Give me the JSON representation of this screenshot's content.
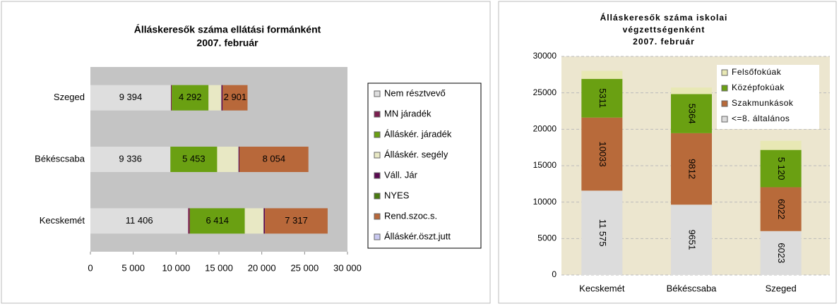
{
  "chart_data": [
    {
      "type": "hbar_stacked",
      "title": "Álláskeresők száma ellátási formánként",
      "subtitle": "2007. február",
      "categories": [
        "Kecskemét",
        "Békéscsaba",
        "Szeged"
      ],
      "series": [
        {
          "name": "Nem résztvevő",
          "color": "#dedede",
          "values": [
            11406,
            9336,
            9394
          ],
          "value_labels": [
            "11 406",
            "9 336",
            "9 394"
          ]
        },
        {
          "name": "MN járadék",
          "color": "#7b1f4f",
          "values": [
            200,
            0,
            100
          ]
        },
        {
          "name": "Álláskér. járadék",
          "color": "#6aa012",
          "values": [
            6414,
            5453,
            4292
          ],
          "value_labels": [
            "6 414",
            "5 453",
            "4 292"
          ]
        },
        {
          "name": "Álláskér. segély",
          "color": "#e8e8c4",
          "values": [
            2200,
            2500,
            1500
          ]
        },
        {
          "name": "Váll. Jár",
          "color": "#5a0a50",
          "values": [
            150,
            100,
            150
          ]
        },
        {
          "name": "NYES",
          "color": "#4a7a10",
          "values": [
            0,
            0,
            0
          ]
        },
        {
          "name": "Rend.szoc.s.",
          "color": "#b8683a",
          "values": [
            7317,
            8054,
            2901
          ],
          "value_labels": [
            "7 317",
            "8 054",
            "2 901"
          ]
        },
        {
          "name": "Álláskér.öszt.jutt",
          "color": "#c8c8f0",
          "values": [
            0,
            0,
            0
          ]
        }
      ],
      "xlim": [
        0,
        30000
      ],
      "xticks": [
        0,
        {
          "value": 5000,
          "label": "5 000"
        },
        {
          "value": 10000,
          "label": "10 000"
        },
        {
          "value": 15000,
          "label": "15 000"
        },
        {
          "value": 20000,
          "label": "20 000"
        },
        {
          "value": 25000,
          "label": "25 000"
        },
        {
          "value": 30000,
          "label": "30 000"
        }
      ],
      "legend": "right"
    },
    {
      "type": "bar_stacked",
      "title": [
        "Álláskeresők száma iskolai",
        "végzettségenként",
        "2007. február"
      ],
      "categories": [
        "Kecskemét",
        "Békéscsaba",
        "Szeged"
      ],
      "series": [
        {
          "name": "<=8. általános",
          "color": "#dcdcdc",
          "values": [
            11575,
            9651,
            6023
          ],
          "value_labels": [
            "11 575",
            "9651",
            "6023"
          ]
        },
        {
          "name": "Szakmunkások",
          "color": "#b86a3a",
          "values": [
            10033,
            9812,
            6022
          ],
          "value_labels": [
            "10033",
            "9812",
            "6022"
          ]
        },
        {
          "name": "Középfokúak",
          "color": "#6aa012",
          "values": [
            5311,
            5364,
            5120
          ],
          "value_labels": [
            "5311",
            "5364",
            "5 120"
          ]
        },
        {
          "name": "Felsőfokúak",
          "color": "#e8e8b4",
          "values": [
            1100,
            900,
            1250
          ]
        }
      ],
      "ylim": [
        0,
        30000
      ],
      "yticks": [
        0,
        5000,
        10000,
        15000,
        20000,
        25000,
        30000
      ],
      "grid": true,
      "legend": "upper right"
    }
  ]
}
